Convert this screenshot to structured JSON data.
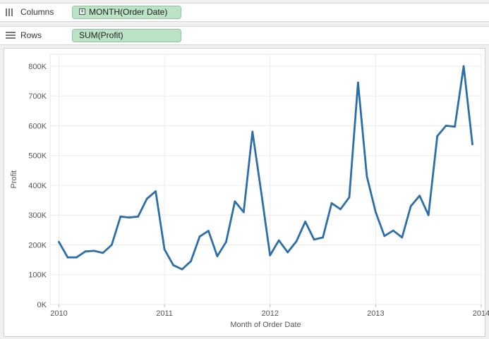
{
  "shelves": {
    "columns": {
      "label": "Columns",
      "pill": "MONTH(Order Date)"
    },
    "rows": {
      "label": "Rows",
      "pill": "SUM(Profit)"
    }
  },
  "icons": {
    "columns": "columns-shelf-icon",
    "rows": "rows-shelf-icon",
    "pill_expand": "plus-box-icon"
  },
  "colors": {
    "line": "#2c6fa8",
    "pill_bg": "#bde3c7",
    "grid": "#ececec"
  },
  "chart_data": {
    "type": "line",
    "title": "",
    "xlabel": "Month of Order Date",
    "ylabel": "Profit",
    "x_ticks": [
      "2010",
      "2011",
      "2012",
      "2013",
      "2014"
    ],
    "y_ticks": [
      "0K",
      "100K",
      "200K",
      "300K",
      "400K",
      "500K",
      "600K",
      "700K",
      "800K"
    ],
    "xlim": [
      "2009-12",
      "2014-01"
    ],
    "ylim": [
      0,
      840000
    ],
    "grid": true,
    "series": [
      {
        "x": [
          "2010-01",
          "2010-02",
          "2010-03",
          "2010-04",
          "2010-05",
          "2010-06",
          "2010-07",
          "2010-08",
          "2010-09",
          "2010-10",
          "2010-11",
          "2010-12",
          "2011-01",
          "2011-02",
          "2011-03",
          "2011-04",
          "2011-05",
          "2011-06",
          "2011-07",
          "2011-08",
          "2011-09",
          "2011-10",
          "2011-11",
          "2011-12",
          "2012-01",
          "2012-02",
          "2012-03",
          "2012-04",
          "2012-05",
          "2012-06",
          "2012-07",
          "2012-08",
          "2012-09",
          "2012-10",
          "2012-11",
          "2012-12",
          "2013-01",
          "2013-02",
          "2013-03",
          "2013-04",
          "2013-05",
          "2013-06",
          "2013-07",
          "2013-08",
          "2013-09",
          "2013-10",
          "2013-11",
          "2013-12"
        ],
        "values": [
          210000,
          158000,
          158000,
          178000,
          180000,
          173000,
          200000,
          295000,
          292000,
          295000,
          355000,
          380000,
          185000,
          132000,
          118000,
          145000,
          228000,
          247000,
          162000,
          210000,
          346000,
          310000,
          580000,
          375000,
          165000,
          215000,
          175000,
          212000,
          278000,
          218000,
          225000,
          340000,
          320000,
          360000,
          745000,
          430000,
          310000,
          230000,
          248000,
          225000,
          330000,
          365000,
          300000,
          565000,
          600000,
          597000,
          800000,
          538000
        ]
      }
    ]
  }
}
